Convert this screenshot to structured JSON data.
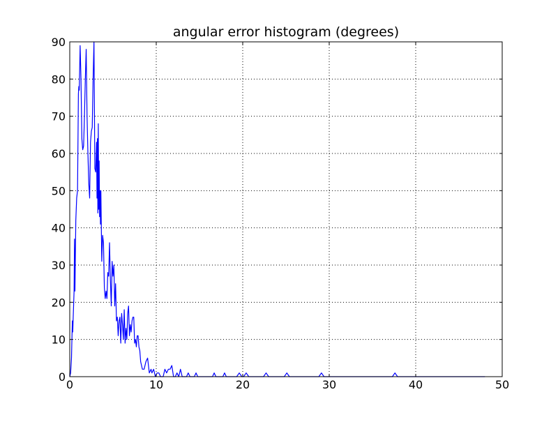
{
  "chart_data": {
    "type": "line",
    "title": "angular error histogram (degrees)",
    "xlabel": "",
    "ylabel": "",
    "xlim": [
      0,
      50
    ],
    "ylim": [
      0,
      90
    ],
    "x_ticks": [
      0,
      10,
      20,
      30,
      40,
      50
    ],
    "y_ticks": [
      0,
      10,
      20,
      30,
      40,
      50,
      60,
      70,
      80,
      90
    ],
    "grid": true,
    "series": [
      {
        "color": "#0000ff",
        "points": [
          [
            0.0,
            0
          ],
          [
            0.1,
            1
          ],
          [
            0.2,
            5
          ],
          [
            0.3,
            15
          ],
          [
            0.35,
            12
          ],
          [
            0.4,
            16
          ],
          [
            0.5,
            23
          ],
          [
            0.55,
            37
          ],
          [
            0.6,
            23
          ],
          [
            0.7,
            42
          ],
          [
            0.8,
            48
          ],
          [
            0.9,
            50
          ],
          [
            1.0,
            76
          ],
          [
            1.05,
            78
          ],
          [
            1.1,
            77
          ],
          [
            1.2,
            89
          ],
          [
            1.3,
            80
          ],
          [
            1.4,
            64
          ],
          [
            1.5,
            61
          ],
          [
            1.6,
            62
          ],
          [
            1.7,
            70
          ],
          [
            1.8,
            80
          ],
          [
            1.9,
            88
          ],
          [
            2.0,
            70
          ],
          [
            2.1,
            60
          ],
          [
            2.2,
            52
          ],
          [
            2.3,
            48
          ],
          [
            2.4,
            63
          ],
          [
            2.5,
            66
          ],
          [
            2.6,
            67
          ],
          [
            2.7,
            80
          ],
          [
            2.8,
            90
          ],
          [
            2.9,
            56
          ],
          [
            3.0,
            55
          ],
          [
            3.1,
            63
          ],
          [
            3.15,
            48
          ],
          [
            3.2,
            64
          ],
          [
            3.25,
            44
          ],
          [
            3.3,
            68
          ],
          [
            3.35,
            45
          ],
          [
            3.4,
            58
          ],
          [
            3.45,
            43
          ],
          [
            3.5,
            50
          ],
          [
            3.55,
            41
          ],
          [
            3.6,
            50
          ],
          [
            3.7,
            31
          ],
          [
            3.8,
            38
          ],
          [
            3.9,
            36
          ],
          [
            4.0,
            24
          ],
          [
            4.1,
            21
          ],
          [
            4.2,
            23
          ],
          [
            4.3,
            21
          ],
          [
            4.4,
            28
          ],
          [
            4.5,
            27
          ],
          [
            4.6,
            36
          ],
          [
            4.7,
            26
          ],
          [
            4.8,
            19
          ],
          [
            4.9,
            31
          ],
          [
            5.0,
            27
          ],
          [
            5.1,
            30
          ],
          [
            5.2,
            19
          ],
          [
            5.3,
            25
          ],
          [
            5.4,
            15
          ],
          [
            5.5,
            16
          ],
          [
            5.6,
            11
          ],
          [
            5.7,
            15
          ],
          [
            5.8,
            16
          ],
          [
            5.9,
            9
          ],
          [
            6.0,
            17
          ],
          [
            6.1,
            14
          ],
          [
            6.2,
            10
          ],
          [
            6.3,
            18
          ],
          [
            6.4,
            9
          ],
          [
            6.5,
            13
          ],
          [
            6.6,
            10
          ],
          [
            6.7,
            17
          ],
          [
            6.8,
            19
          ],
          [
            6.9,
            11
          ],
          [
            7.0,
            14
          ],
          [
            7.1,
            12
          ],
          [
            7.2,
            15
          ],
          [
            7.3,
            16
          ],
          [
            7.4,
            16
          ],
          [
            7.5,
            9
          ],
          [
            7.6,
            10
          ],
          [
            7.7,
            8
          ],
          [
            7.8,
            11
          ],
          [
            7.9,
            11
          ],
          [
            8.0,
            8
          ],
          [
            8.1,
            7
          ],
          [
            8.2,
            4
          ],
          [
            8.4,
            2
          ],
          [
            8.6,
            2
          ],
          [
            8.8,
            4
          ],
          [
            9.0,
            5
          ],
          [
            9.2,
            1
          ],
          [
            9.4,
            2
          ],
          [
            9.5,
            1
          ],
          [
            9.7,
            2
          ],
          [
            9.9,
            0
          ],
          [
            10.1,
            1
          ],
          [
            10.3,
            1
          ],
          [
            10.5,
            0
          ],
          [
            10.8,
            0
          ],
          [
            11.0,
            2
          ],
          [
            11.2,
            1
          ],
          [
            11.4,
            2
          ],
          [
            11.6,
            2
          ],
          [
            11.8,
            3
          ],
          [
            12.0,
            0
          ],
          [
            12.2,
            0
          ],
          [
            12.4,
            1
          ],
          [
            12.6,
            0
          ],
          [
            12.8,
            2
          ],
          [
            13.0,
            0
          ],
          [
            13.5,
            0
          ],
          [
            13.7,
            1
          ],
          [
            13.9,
            0
          ],
          [
            14.4,
            0
          ],
          [
            14.6,
            1
          ],
          [
            14.8,
            0
          ],
          [
            16.5,
            0
          ],
          [
            16.7,
            1
          ],
          [
            16.9,
            0
          ],
          [
            17.7,
            0
          ],
          [
            17.9,
            1
          ],
          [
            18.1,
            0
          ],
          [
            19.3,
            0
          ],
          [
            19.6,
            1
          ],
          [
            19.9,
            0
          ],
          [
            20.1,
            0
          ],
          [
            20.4,
            1
          ],
          [
            20.7,
            0
          ],
          [
            22.4,
            0
          ],
          [
            22.7,
            1
          ],
          [
            23.0,
            0
          ],
          [
            24.8,
            0
          ],
          [
            25.1,
            1
          ],
          [
            25.4,
            0
          ],
          [
            28.8,
            0
          ],
          [
            29.1,
            1
          ],
          [
            29.4,
            0
          ],
          [
            37.3,
            0
          ],
          [
            37.6,
            1
          ],
          [
            37.9,
            0
          ],
          [
            48.0,
            0
          ]
        ]
      }
    ]
  }
}
